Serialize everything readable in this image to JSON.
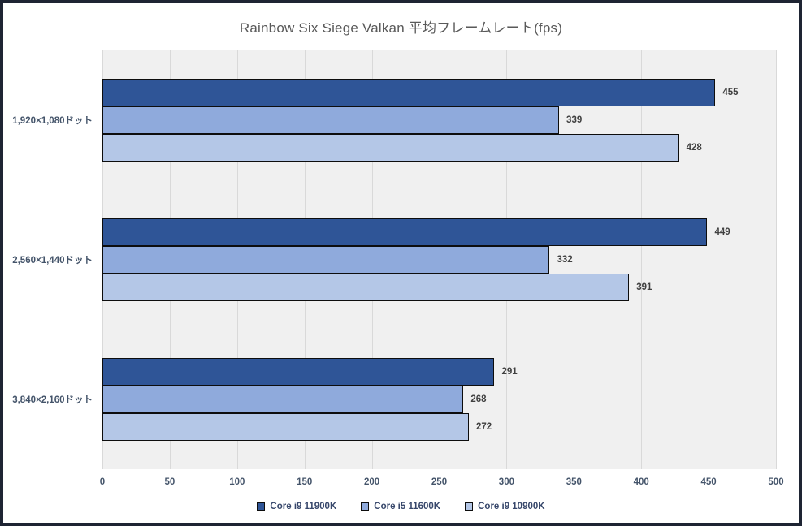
{
  "chart_data": {
    "type": "bar",
    "orientation": "horizontal",
    "title": "Rainbow Six Siege Valkan 平均フレームレート(fps)",
    "categories": [
      "1,920×1,080ドット",
      "2,560×1,440ドット",
      "3,840×2,160ドット"
    ],
    "series": [
      {
        "name": "Core i9 11900K",
        "color": "#2F5597",
        "values": [
          455,
          449,
          291
        ]
      },
      {
        "name": "Core i5 11600K",
        "color": "#8FAADC",
        "values": [
          339,
          332,
          268
        ]
      },
      {
        "name": "Core i9 10900K",
        "color": "#B4C7E7",
        "values": [
          428,
          391,
          272
        ]
      }
    ],
    "xlim": [
      0,
      500
    ],
    "xticks": [
      0,
      50,
      100,
      150,
      200,
      250,
      300,
      350,
      400,
      450,
      500
    ],
    "grid": true,
    "legend_position": "bottom",
    "data_labels": true
  },
  "colors": {
    "frame_border": "#1e2433",
    "plot_background": "#f0f0f0",
    "gridline": "#d9d9d9",
    "bar_border": "#0d0d0d",
    "title_text": "#595959",
    "axis_text": "#44546a",
    "data_label_text": "#404040"
  }
}
